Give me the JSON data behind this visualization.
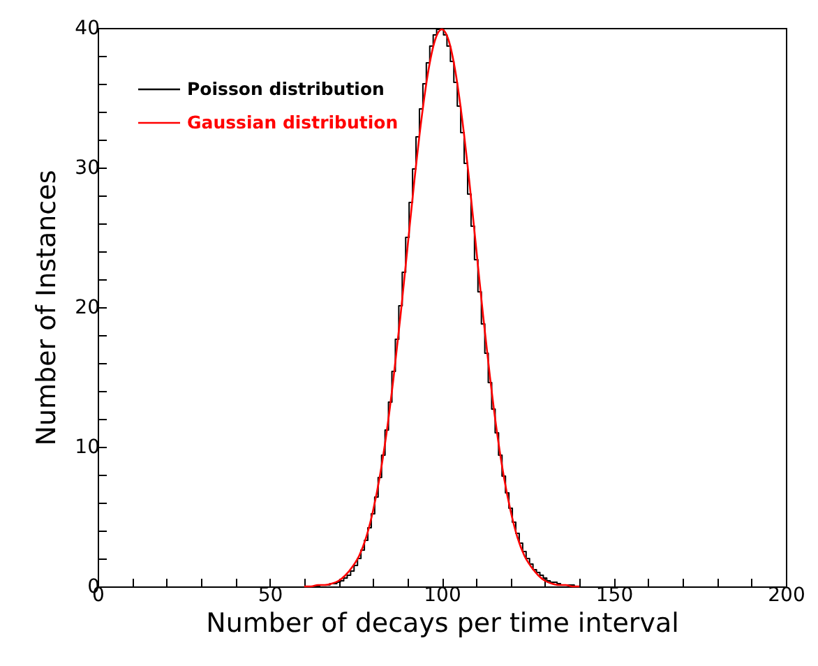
{
  "chart_data": {
    "type": "step",
    "xlabel": "Number of decays per time interval",
    "ylabel": "Number of Instances",
    "xlim": [
      0,
      200
    ],
    "ylim": [
      0,
      40
    ],
    "xticks": [
      0,
      {
        "value": 10,
        "label": null
      },
      {
        "value": 20,
        "label": null
      },
      {
        "value": 30,
        "label": null
      },
      {
        "value": 40,
        "label": null
      },
      50,
      {
        "value": 60,
        "label": null
      },
      {
        "value": 70,
        "label": null
      },
      {
        "value": 80,
        "label": null
      },
      {
        "value": 90,
        "label": null
      },
      100,
      {
        "value": 110,
        "label": null
      },
      {
        "value": 120,
        "label": null
      },
      {
        "value": 130,
        "label": null
      },
      {
        "value": 140,
        "label": null
      },
      150,
      {
        "value": 160,
        "label": null
      },
      {
        "value": 170,
        "label": null
      },
      {
        "value": 180,
        "label": null
      },
      {
        "value": 190,
        "label": null
      },
      200
    ],
    "yticks": [
      0,
      {
        "value": 2,
        "label": null
      },
      {
        "value": 4,
        "label": null
      },
      {
        "value": 6,
        "label": null
      },
      {
        "value": 8,
        "label": null
      },
      10,
      {
        "value": 12,
        "label": null
      },
      {
        "value": 14,
        "label": null
      },
      {
        "value": 16,
        "label": null
      },
      {
        "value": 18,
        "label": null
      },
      20,
      {
        "value": 22,
        "label": null
      },
      {
        "value": 24,
        "label": null
      },
      {
        "value": 26,
        "label": null
      },
      {
        "value": 28,
        "label": null
      },
      30,
      {
        "value": 32,
        "label": null
      },
      {
        "value": 34,
        "label": null
      },
      {
        "value": 36,
        "label": null
      },
      {
        "value": 38,
        "label": null
      },
      40
    ],
    "legend": "top left",
    "grid": false,
    "series": [
      {
        "name": "Poisson distribution",
        "type": "step",
        "color": "#000000",
        "x": [
          63,
          64,
          65,
          66,
          67,
          68,
          69,
          70,
          71,
          72,
          73,
          74,
          75,
          76,
          77,
          78,
          79,
          80,
          81,
          82,
          83,
          84,
          85,
          86,
          87,
          88,
          89,
          90,
          91,
          92,
          93,
          94,
          95,
          96,
          97,
          98,
          99,
          100,
          101,
          102,
          103,
          104,
          105,
          106,
          107,
          108,
          109,
          110,
          111,
          112,
          113,
          114,
          115,
          116,
          117,
          118,
          119,
          120,
          121,
          122,
          123,
          124,
          125,
          126,
          127,
          128,
          129,
          130,
          131,
          132,
          133,
          134,
          135,
          136,
          137,
          138,
          139,
          140
        ],
        "values": [
          0.0,
          0.0,
          0.1,
          0.1,
          0.1,
          0.2,
          0.2,
          0.3,
          0.4,
          0.6,
          0.8,
          1.1,
          1.5,
          2.0,
          2.6,
          3.3,
          4.2,
          5.2,
          6.4,
          7.8,
          9.4,
          11.2,
          13.2,
          15.4,
          17.7,
          20.1,
          22.5,
          25.0,
          27.5,
          29.9,
          32.2,
          34.2,
          36.0,
          37.5,
          38.7,
          39.5,
          39.9,
          39.9,
          39.5,
          38.7,
          37.6,
          36.1,
          34.4,
          32.5,
          30.3,
          28.1,
          25.8,
          23.4,
          21.1,
          18.8,
          16.7,
          14.6,
          12.7,
          11.0,
          9.4,
          7.9,
          6.7,
          5.6,
          4.6,
          3.8,
          3.1,
          2.5,
          2.0,
          1.6,
          1.2,
          1.0,
          0.8,
          0.6,
          0.4,
          0.3,
          0.3,
          0.2,
          0.1,
          0.1,
          0.1,
          0.1,
          0.0,
          0.0
        ]
      },
      {
        "name": "Gaussian distribution",
        "type": "line",
        "color": "#ff0000",
        "x": [
          60,
          62,
          64,
          66,
          68,
          70,
          72,
          74,
          76,
          78,
          80,
          82,
          84,
          86,
          88,
          90,
          92,
          94,
          96,
          98,
          100,
          102,
          104,
          106,
          108,
          110,
          112,
          114,
          116,
          118,
          120,
          122,
          124,
          126,
          128,
          130,
          132,
          134,
          136,
          138,
          140
        ],
        "values": [
          0.0,
          0.0,
          0.1,
          0.1,
          0.2,
          0.4,
          0.8,
          1.4,
          2.2,
          3.5,
          5.4,
          7.9,
          11.1,
          15.0,
          19.4,
          24.2,
          29.0,
          33.3,
          36.8,
          39.1,
          39.9,
          39.1,
          36.8,
          33.3,
          29.0,
          24.2,
          19.4,
          15.0,
          11.1,
          7.9,
          5.4,
          3.5,
          2.2,
          1.4,
          0.8,
          0.4,
          0.2,
          0.1,
          0.1,
          0.0,
          0.0
        ]
      }
    ]
  }
}
